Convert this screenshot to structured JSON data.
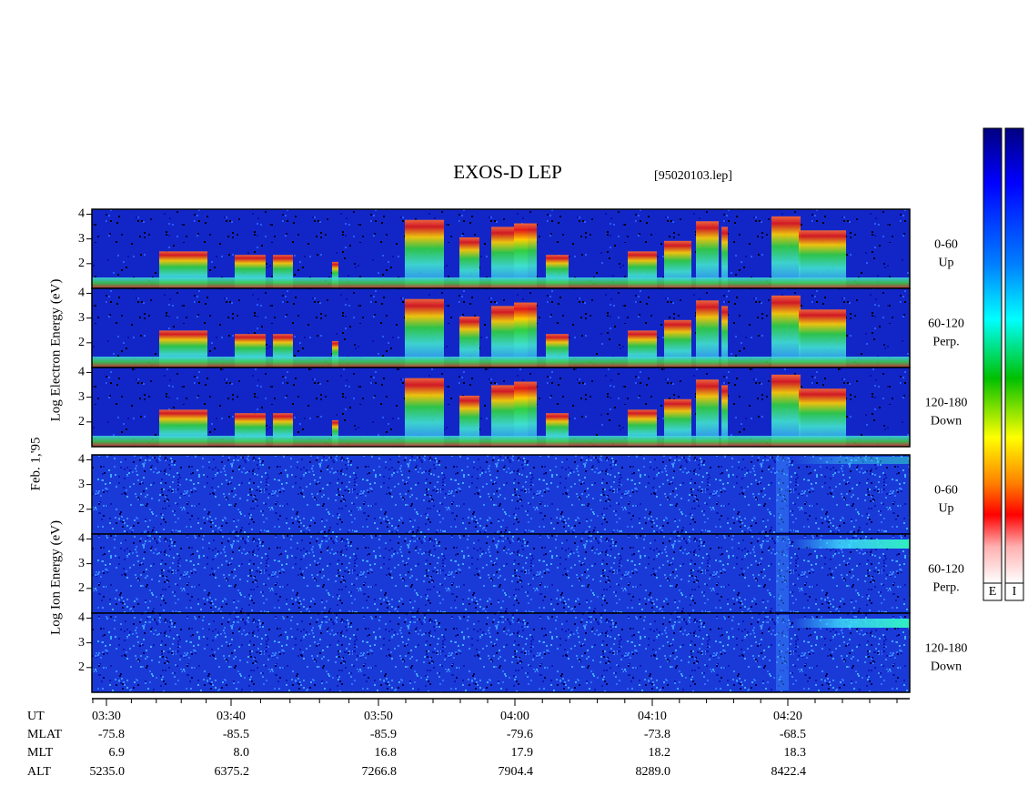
{
  "title": "EXOS-D LEP",
  "file_label": "[95020103.lep]",
  "date_label": "Feb. 1,'95",
  "groups": [
    {
      "axis_label": "Log Electron Energy (eV)",
      "ylim": [
        1,
        4.2
      ],
      "yticks": [
        2,
        3,
        4
      ],
      "panels": [
        {
          "angle": "0-60",
          "direction": "Up"
        },
        {
          "angle": "60-120",
          "direction": "Perp."
        },
        {
          "angle": "120-180",
          "direction": "Down"
        }
      ]
    },
    {
      "axis_label": "Log Ion Energy (eV)",
      "ylim": [
        1,
        4.2
      ],
      "yticks": [
        2,
        3,
        4
      ],
      "panels": [
        {
          "angle": "0-60",
          "direction": "Up"
        },
        {
          "angle": "60-120",
          "direction": "Perp."
        },
        {
          "angle": "120-180",
          "direction": "Down"
        }
      ]
    }
  ],
  "ephemeris": [
    {
      "label": "UT",
      "values": [
        "03:30",
        "03:40",
        "03:50",
        "04:00",
        "04:10",
        "04:20"
      ]
    },
    {
      "label": "MLAT",
      "values": [
        "-75.8",
        "-85.5",
        "-85.9",
        "-79.6",
        "-73.8",
        "-68.5"
      ]
    },
    {
      "label": "MLT",
      "values": [
        "6.9",
        "8.0",
        "16.8",
        "17.9",
        "18.2",
        "18.3"
      ]
    },
    {
      "label": "ALT",
      "values": [
        "5235.0",
        "6375.2",
        "7266.8",
        "7904.4",
        "8289.0",
        "8422.4"
      ]
    }
  ],
  "colorbars": [
    "E",
    "I"
  ]
}
